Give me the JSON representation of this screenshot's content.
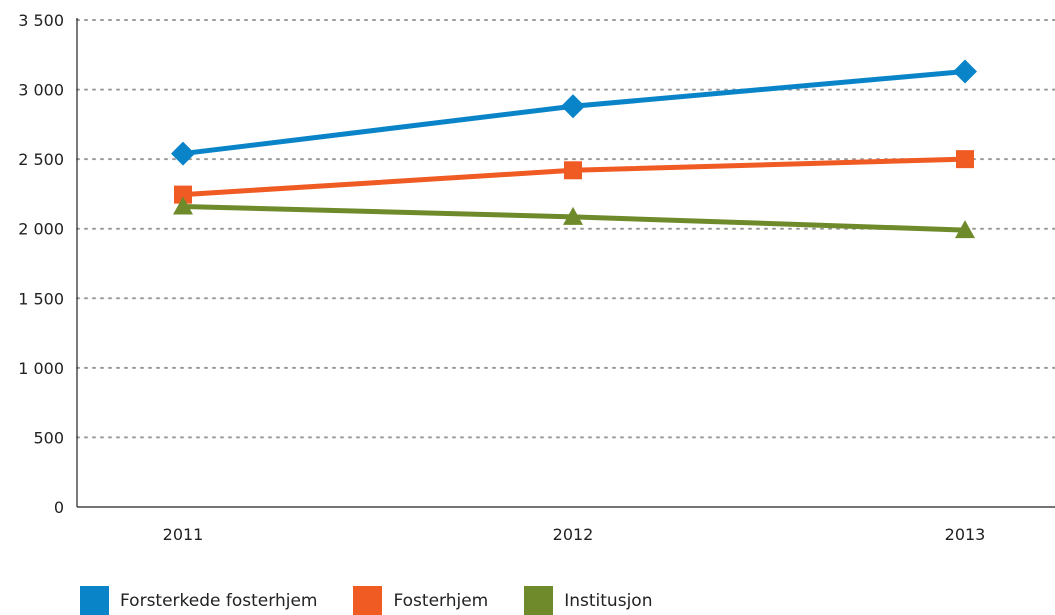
{
  "chart_data": {
    "type": "line",
    "x": [
      "2011",
      "2012",
      "2013"
    ],
    "ylim": [
      0,
      3500
    ],
    "y_ticks": [
      0,
      500,
      1000,
      1500,
      2000,
      2500,
      3000,
      3500
    ],
    "y_tick_labels": [
      "0",
      "500",
      "1 000",
      "1 500",
      "2 000",
      "2 500",
      "3 000",
      "3 500"
    ],
    "grid": "horizontal-dotted",
    "legend_position": "bottom-left",
    "series": [
      {
        "name": "Forsterkede fosterhjem",
        "values": [
          2540,
          2880,
          3130
        ],
        "color": "#0a84c8",
        "marker": "diamond"
      },
      {
        "name": "Fosterhjem",
        "values": [
          2245,
          2420,
          2500
        ],
        "color": "#f05a23",
        "marker": "square"
      },
      {
        "name": "Institusjon",
        "values": [
          2160,
          2085,
          1990
        ],
        "color": "#6f8a2a",
        "marker": "triangle"
      }
    ]
  }
}
